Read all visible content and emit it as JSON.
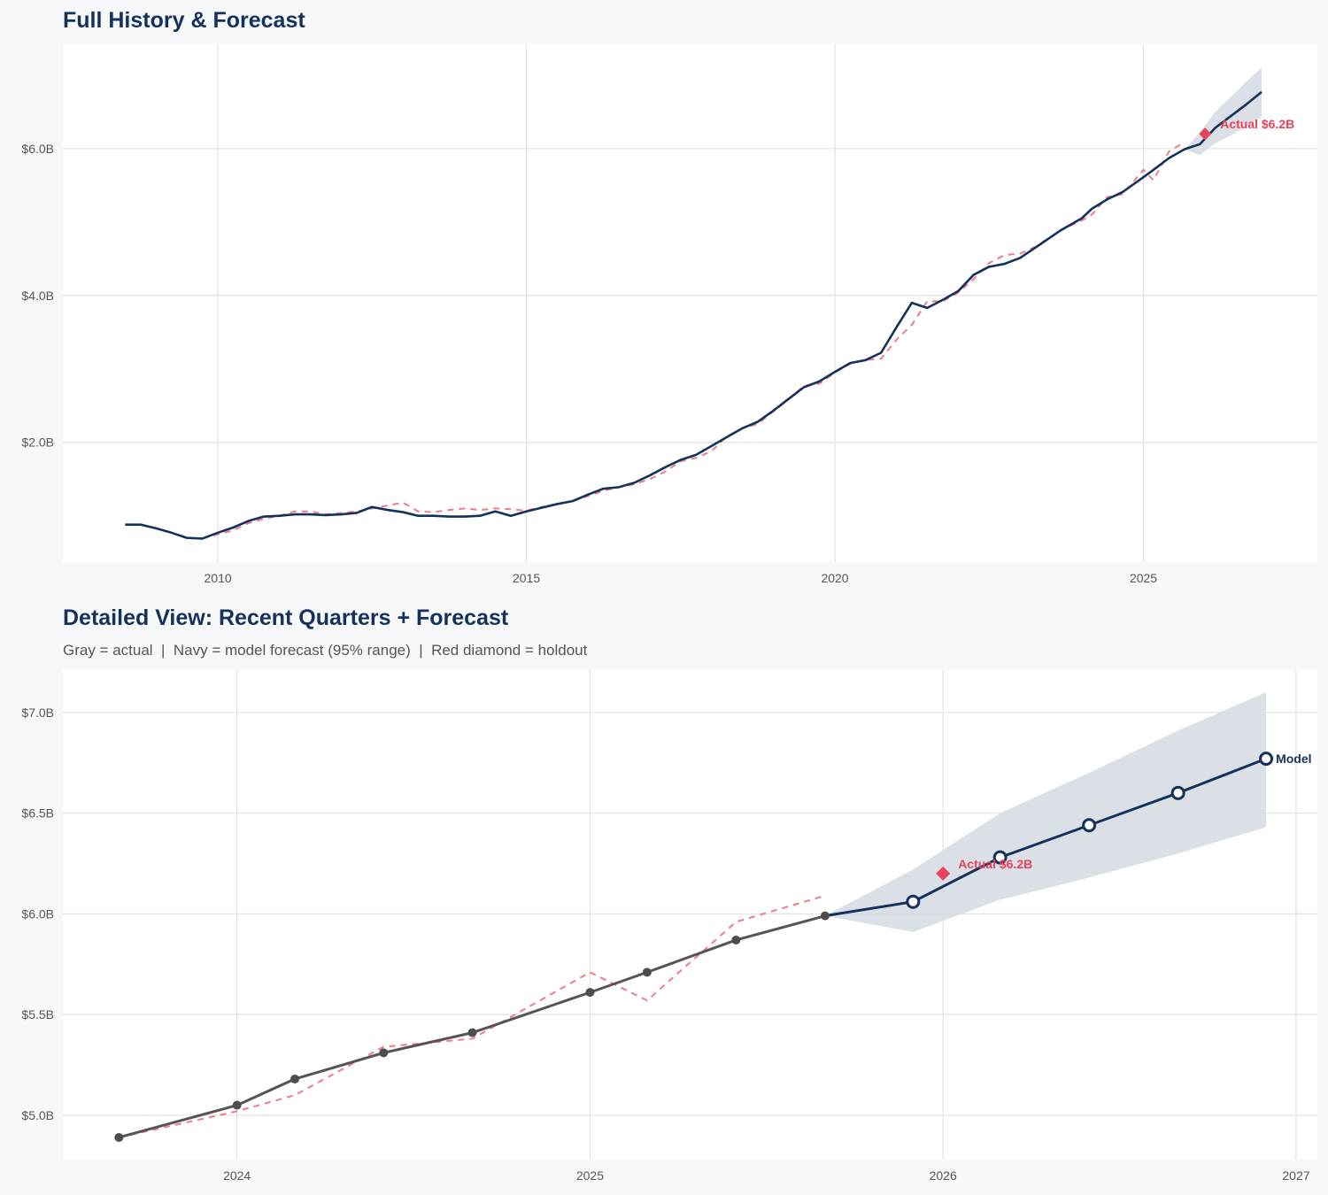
{
  "colors": {
    "background": "#f7f8fa",
    "panel": "#ffffff",
    "navy": "#14325c",
    "gray": "#4d4d4d",
    "red": "#e8435a",
    "dashed": "#ef7b8c",
    "band": "#d5dbe3"
  },
  "chart_data": [
    {
      "type": "line",
      "title": "Full History & Forecast",
      "xlim": [
        "2007-06-28",
        "2027-10-27"
      ],
      "ylim": [
        0.37,
        7.42
      ],
      "y_unit": "$B",
      "grid": true,
      "x_ticks": [
        {
          "value": "2010-01-01",
          "label": "2010"
        },
        {
          "value": "2015-01-01",
          "label": "2015"
        },
        {
          "value": "2020-01-01",
          "label": "2020"
        },
        {
          "value": "2025-01-01",
          "label": "2025"
        }
      ],
      "y_ticks": [
        {
          "value": 2,
          "label": "$2.0B"
        },
        {
          "value": 4,
          "label": "$4.0B"
        },
        {
          "value": 6,
          "label": "$6.0B"
        }
      ],
      "holdout_label": "Actual $6.2B"
    },
    {
      "type": "line",
      "title": "Detailed View: Recent Quarters + Forecast",
      "subtitle": "Gray = actual  |  Navy = model forecast (95% range)  |  Red diamond = holdout",
      "xlim": [
        "2023-07-05",
        "2027-01-23"
      ],
      "ylim": [
        4.78,
        7.21
      ],
      "y_unit": "$B",
      "grid": true,
      "x_ticks": [
        {
          "value": "2024-01-01",
          "label": "2024"
        },
        {
          "value": "2025-01-01",
          "label": "2025"
        },
        {
          "value": "2026-01-01",
          "label": "2026"
        },
        {
          "value": "2027-01-01",
          "label": "2027"
        }
      ],
      "y_ticks": [
        {
          "value": 5.0,
          "label": "$5.0B"
        },
        {
          "value": 5.5,
          "label": "$5.5B"
        },
        {
          "value": 6.0,
          "label": "$6.0B"
        },
        {
          "value": 6.5,
          "label": "$6.5B"
        },
        {
          "value": 7.0,
          "label": "$7.0B"
        }
      ],
      "holdout_label": "Actual $6.2B",
      "forecast_label": "Model"
    }
  ],
  "series": {
    "actual": [
      [
        "2008-07-01",
        0.88
      ],
      [
        "2008-10-01",
        0.88
      ],
      [
        "2009-01-01",
        0.83
      ],
      [
        "2009-04-01",
        0.77
      ],
      [
        "2009-07-01",
        0.7
      ],
      [
        "2009-10-01",
        0.69
      ],
      [
        "2010-01-01",
        0.77
      ],
      [
        "2010-04-01",
        0.84
      ],
      [
        "2010-07-01",
        0.93
      ],
      [
        "2010-10-01",
        0.99
      ],
      [
        "2011-01-01",
        1.0
      ],
      [
        "2011-04-01",
        1.02
      ],
      [
        "2011-07-01",
        1.02
      ],
      [
        "2011-10-01",
        1.01
      ],
      [
        "2012-01-01",
        1.02
      ],
      [
        "2012-04-01",
        1.04
      ],
      [
        "2012-07-01",
        1.12
      ],
      [
        "2012-10-01",
        1.08
      ],
      [
        "2013-01-01",
        1.05
      ],
      [
        "2013-04-01",
        1.0
      ],
      [
        "2013-07-01",
        1.0
      ],
      [
        "2013-10-01",
        0.99
      ],
      [
        "2014-01-01",
        0.99
      ],
      [
        "2014-04-01",
        1.0
      ],
      [
        "2014-07-01",
        1.06
      ],
      [
        "2014-10-01",
        1.0
      ],
      [
        "2015-01-01",
        1.06
      ],
      [
        "2015-04-01",
        1.11
      ],
      [
        "2015-07-01",
        1.16
      ],
      [
        "2015-10-01",
        1.2
      ],
      [
        "2016-01-01",
        1.29
      ],
      [
        "2016-04-01",
        1.37
      ],
      [
        "2016-07-01",
        1.39
      ],
      [
        "2016-10-01",
        1.45
      ],
      [
        "2017-01-01",
        1.55
      ],
      [
        "2017-04-01",
        1.66
      ],
      [
        "2017-07-01",
        1.76
      ],
      [
        "2017-10-01",
        1.83
      ],
      [
        "2018-01-01",
        1.95
      ],
      [
        "2018-04-01",
        2.07
      ],
      [
        "2018-07-01",
        2.19
      ],
      [
        "2018-10-01",
        2.28
      ],
      [
        "2019-01-01",
        2.43
      ],
      [
        "2019-04-01",
        2.59
      ],
      [
        "2019-07-01",
        2.75
      ],
      [
        "2019-10-01",
        2.83
      ],
      [
        "2020-01-01",
        2.96
      ],
      [
        "2020-04-01",
        3.08
      ],
      [
        "2020-07-01",
        3.12
      ],
      [
        "2020-10-01",
        3.22
      ],
      [
        "2021-01-01",
        3.57
      ],
      [
        "2021-04-01",
        3.9
      ],
      [
        "2021-07-01",
        3.83
      ],
      [
        "2021-10-01",
        3.94
      ],
      [
        "2022-01-01",
        4.06
      ],
      [
        "2022-04-01",
        4.28
      ],
      [
        "2022-07-01",
        4.39
      ],
      [
        "2022-10-01",
        4.43
      ],
      [
        "2023-01-01",
        4.51
      ],
      [
        "2023-04-01",
        4.65
      ],
      [
        "2023-09-01",
        4.89
      ],
      [
        "2024-01-01",
        5.05
      ],
      [
        "2024-03-01",
        5.18
      ],
      [
        "2024-06-01",
        5.31
      ],
      [
        "2024-09-01",
        5.41
      ],
      [
        "2025-01-01",
        5.61
      ],
      [
        "2025-03-01",
        5.71
      ],
      [
        "2025-06-01",
        5.87
      ],
      [
        "2025-09-01",
        5.99
      ]
    ],
    "dashed": [
      [
        "2009-10-01",
        0.69
      ],
      [
        "2010-01-01",
        0.75
      ],
      [
        "2010-04-01",
        0.8
      ],
      [
        "2010-07-01",
        0.9
      ],
      [
        "2010-10-01",
        0.96
      ],
      [
        "2011-01-01",
        1.0
      ],
      [
        "2011-04-01",
        1.06
      ],
      [
        "2011-07-01",
        1.06
      ],
      [
        "2011-10-01",
        1.02
      ],
      [
        "2012-01-01",
        1.04
      ],
      [
        "2012-04-01",
        1.06
      ],
      [
        "2012-07-01",
        1.1
      ],
      [
        "2012-10-01",
        1.14
      ],
      [
        "2013-01-01",
        1.18
      ],
      [
        "2013-04-01",
        1.06
      ],
      [
        "2013-07-01",
        1.05
      ],
      [
        "2013-10-01",
        1.08
      ],
      [
        "2014-01-01",
        1.1
      ],
      [
        "2014-04-01",
        1.08
      ],
      [
        "2014-07-01",
        1.1
      ],
      [
        "2014-10-01",
        1.09
      ],
      [
        "2015-01-01",
        1.07
      ],
      [
        "2015-04-01",
        1.12
      ],
      [
        "2015-07-01",
        1.16
      ],
      [
        "2015-10-01",
        1.2
      ],
      [
        "2016-01-01",
        1.27
      ],
      [
        "2016-04-01",
        1.34
      ],
      [
        "2016-07-01",
        1.39
      ],
      [
        "2016-10-01",
        1.43
      ],
      [
        "2017-01-01",
        1.5
      ],
      [
        "2017-04-01",
        1.6
      ],
      [
        "2017-07-01",
        1.74
      ],
      [
        "2017-10-01",
        1.79
      ],
      [
        "2018-01-01",
        1.88
      ],
      [
        "2018-04-01",
        2.08
      ],
      [
        "2018-07-01",
        2.19
      ],
      [
        "2018-10-01",
        2.25
      ],
      [
        "2019-01-01",
        2.42
      ],
      [
        "2019-04-01",
        2.58
      ],
      [
        "2019-07-01",
        2.77
      ],
      [
        "2019-10-01",
        2.8
      ],
      [
        "2020-01-01",
        2.95
      ],
      [
        "2020-04-01",
        3.07
      ],
      [
        "2020-07-01",
        3.12
      ],
      [
        "2020-10-01",
        3.14
      ],
      [
        "2021-01-01",
        3.4
      ],
      [
        "2021-04-01",
        3.6
      ],
      [
        "2021-07-01",
        3.92
      ],
      [
        "2021-10-01",
        3.92
      ],
      [
        "2022-01-01",
        4.04
      ],
      [
        "2022-04-01",
        4.22
      ],
      [
        "2022-07-01",
        4.44
      ],
      [
        "2022-10-01",
        4.55
      ],
      [
        "2023-01-01",
        4.57
      ],
      [
        "2023-04-01",
        4.66
      ],
      [
        "2023-09-01",
        4.89
      ],
      [
        "2024-01-01",
        5.02
      ],
      [
        "2024-03-01",
        5.1
      ],
      [
        "2024-06-01",
        5.34
      ],
      [
        "2024-09-01",
        5.38
      ],
      [
        "2025-01-01",
        5.71
      ],
      [
        "2025-03-01",
        5.57
      ],
      [
        "2025-06-01",
        5.96
      ],
      [
        "2025-09-01",
        6.09
      ]
    ],
    "forecast": [
      {
        "date": "2025-09-01",
        "value": 5.99,
        "lower": 5.99,
        "upper": 5.99
      },
      {
        "date": "2025-12-01",
        "value": 6.06,
        "lower": 5.91,
        "upper": 6.22
      },
      {
        "date": "2026-03-01",
        "value": 6.28,
        "lower": 6.07,
        "upper": 6.5
      },
      {
        "date": "2026-06-01",
        "value": 6.44,
        "lower": 6.18,
        "upper": 6.7
      },
      {
        "date": "2026-09-01",
        "value": 6.6,
        "lower": 6.3,
        "upper": 6.91
      },
      {
        "date": "2026-12-01",
        "value": 6.77,
        "lower": 6.43,
        "upper": 7.1
      }
    ],
    "holdout": {
      "date": "2026-01-01",
      "value": 6.2
    }
  }
}
